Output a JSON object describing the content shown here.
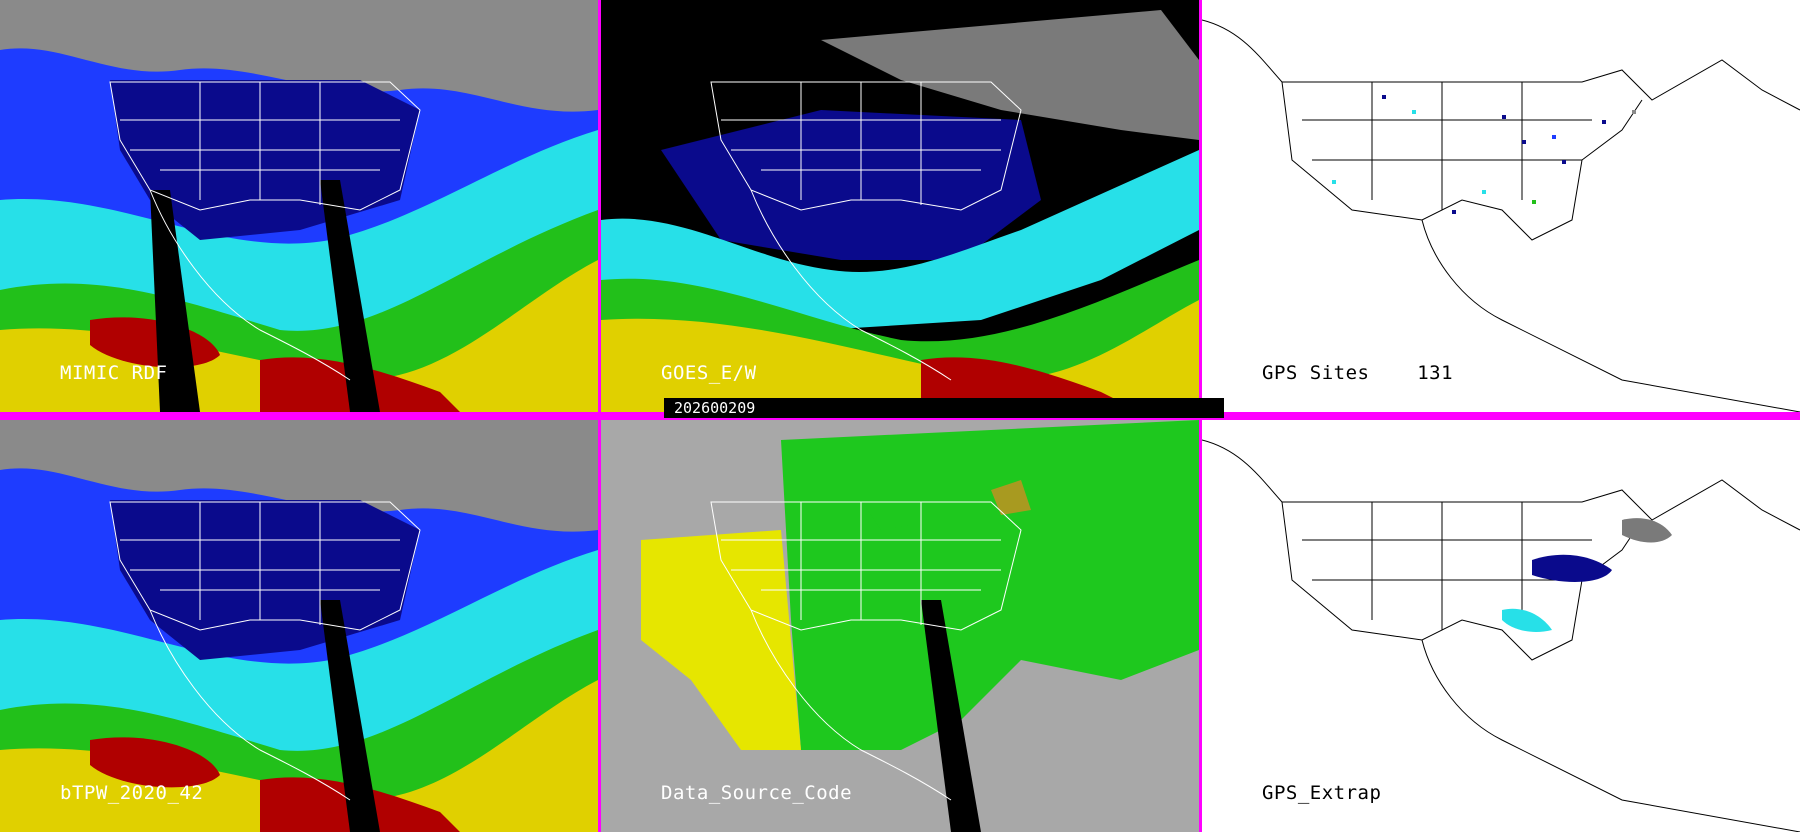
{
  "panels": [
    {
      "id": "p1",
      "label": "MIMIC RDF"
    },
    {
      "id": "p2",
      "label": "GOES_E/W"
    },
    {
      "id": "p3",
      "label": "GPS Sites    131"
    },
    {
      "id": "p4",
      "label": "bTPW_2020_42"
    },
    {
      "id": "p5",
      "label": "Data_Source_Code"
    },
    {
      "id": "p6",
      "label": "GPS_Extrap"
    }
  ],
  "timestamp": "202600209",
  "colors": {
    "divider": "#ff00ff",
    "gray": "#8a8a8a",
    "darkblue": "#0a0a8c",
    "blue": "#1e3cff",
    "cyan": "#27e0e8",
    "green": "#22c01a",
    "yellow": "#e0d000",
    "olive": "#a89a20",
    "red": "#b00000",
    "source_gray": "#a8a8a8",
    "source_green": "#1ec81e",
    "source_yellow": "#e6e600"
  }
}
